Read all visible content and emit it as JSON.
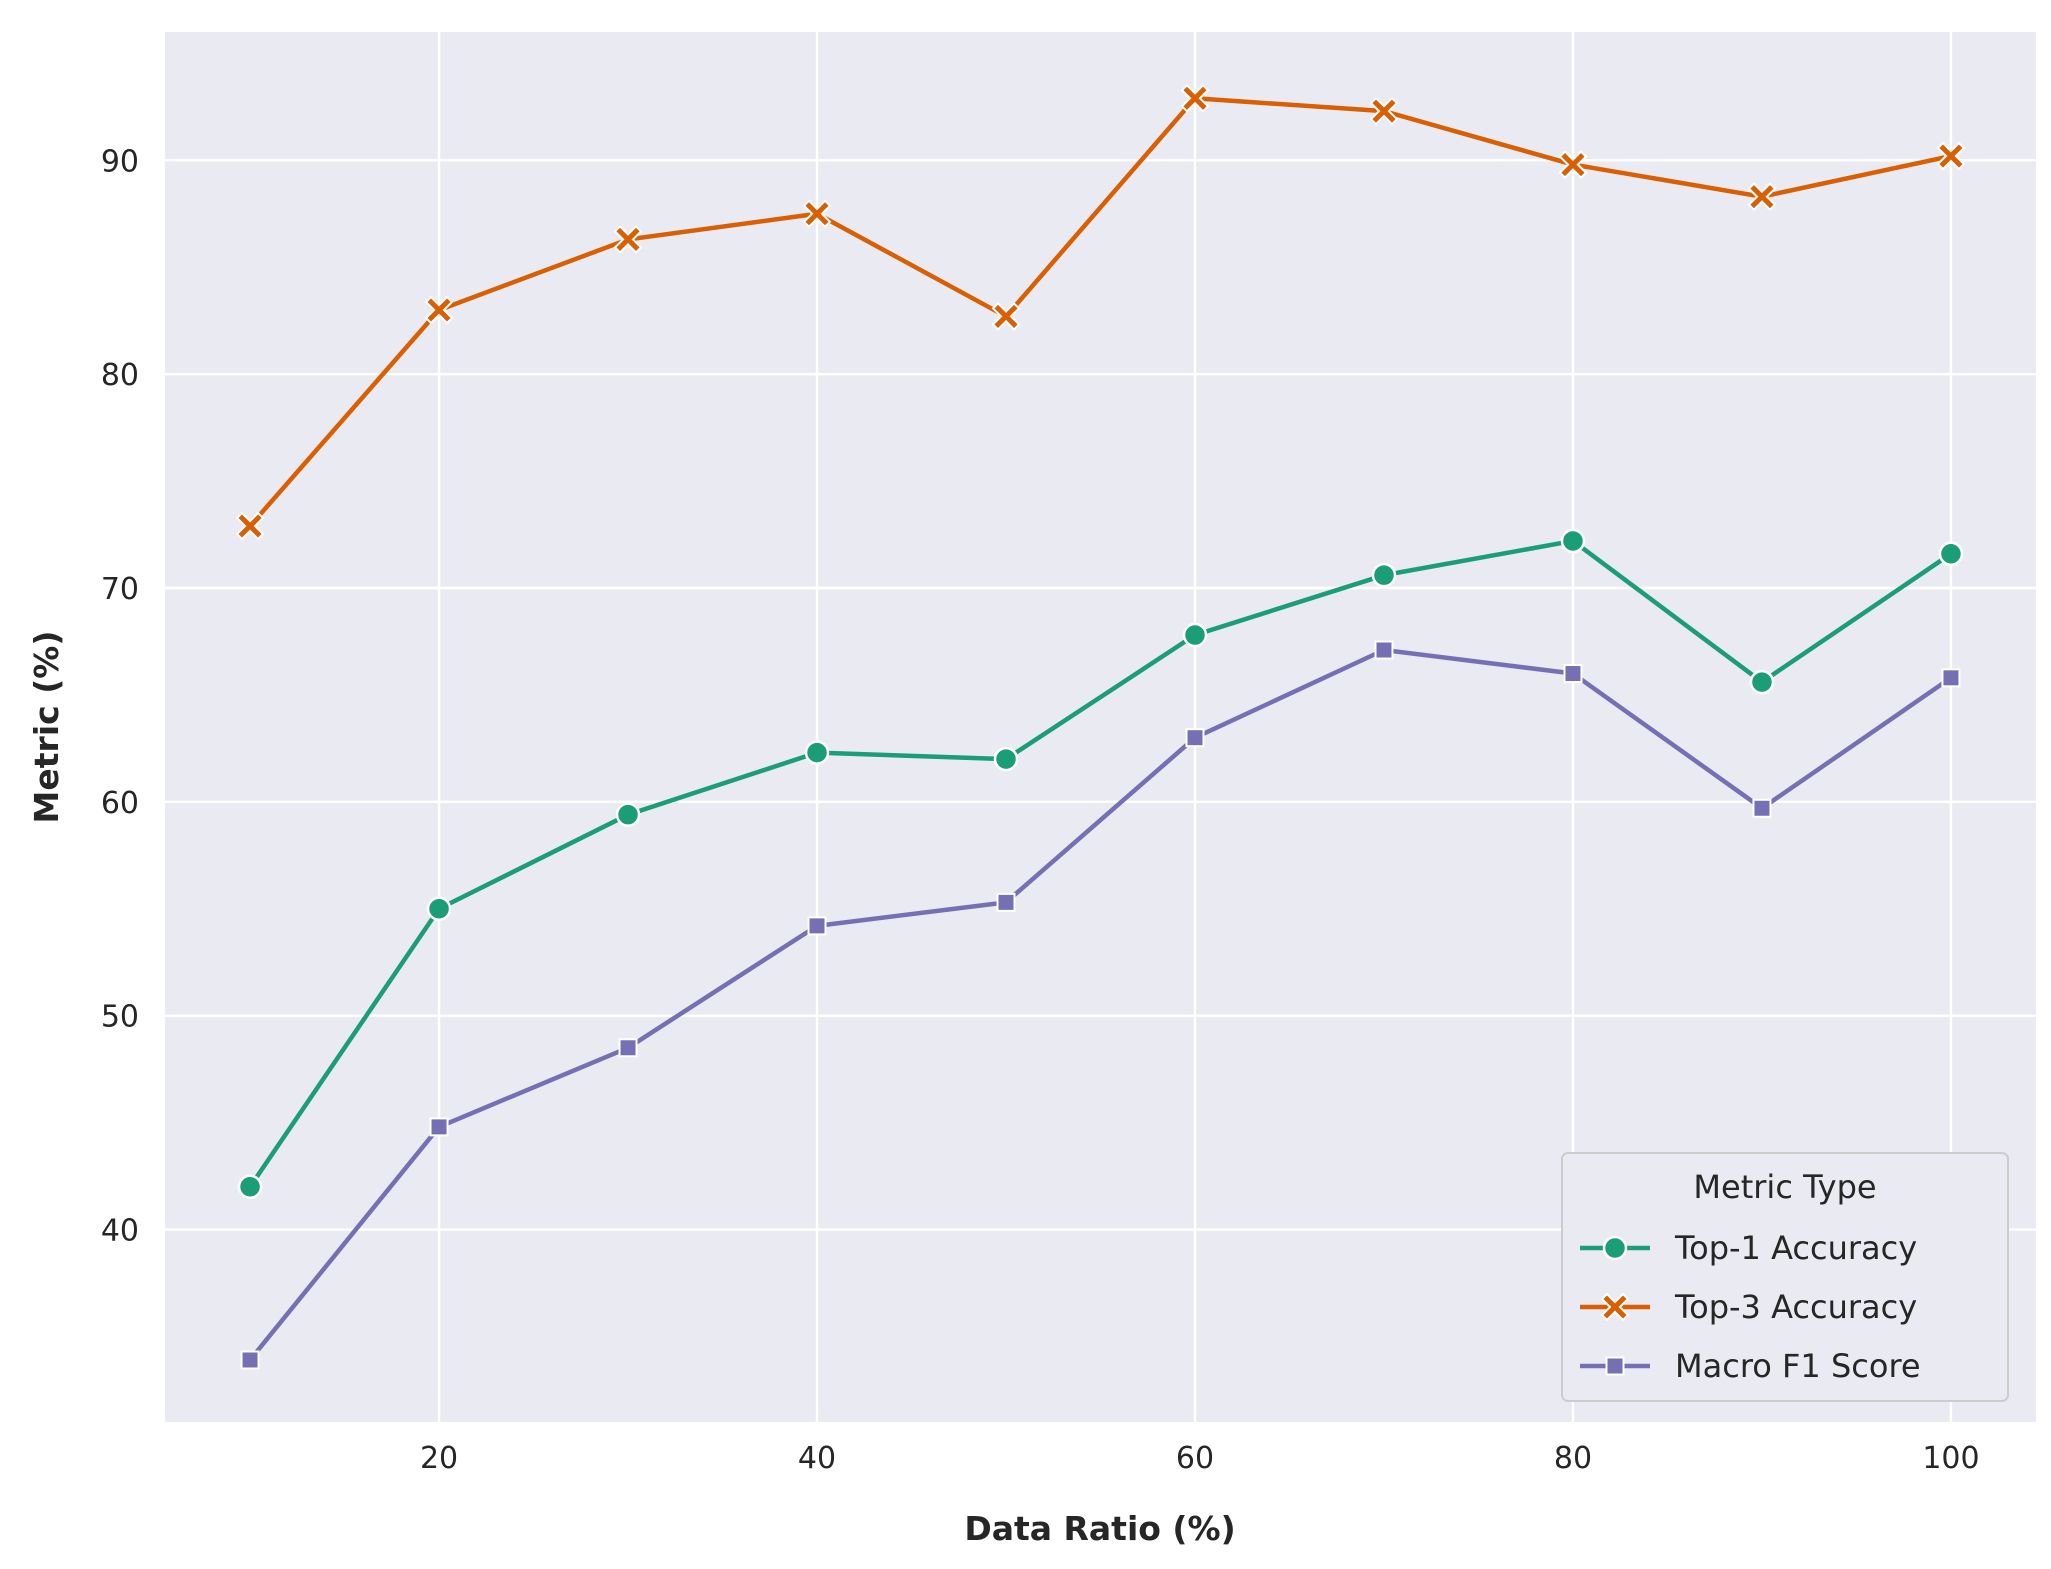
{
  "chart_data": {
    "type": "line",
    "title": "",
    "xlabel": "Data Ratio (%)",
    "ylabel": "Metric (%)",
    "x": [
      10,
      20,
      30,
      40,
      50,
      60,
      70,
      80,
      90,
      100
    ],
    "xlim": [
      5.5,
      104.5
    ],
    "ylim": [
      31,
      96
    ],
    "xticks": [
      20,
      40,
      60,
      80,
      100
    ],
    "yticks": [
      40,
      50,
      60,
      70,
      80,
      90
    ],
    "grid": true,
    "legend": {
      "title": "Metric Type",
      "placement": "lower-right"
    },
    "series": [
      {
        "name": "Top-1 Accuracy",
        "color": "#1b9e77",
        "marker": "circle",
        "values": [
          42.0,
          55.0,
          59.4,
          62.3,
          62.0,
          67.8,
          70.6,
          72.2,
          65.6,
          71.6
        ]
      },
      {
        "name": "Top-3 Accuracy",
        "color": "#d95f02",
        "marker": "x",
        "values": [
          72.9,
          83.0,
          86.3,
          87.5,
          82.7,
          92.9,
          92.3,
          89.8,
          88.3,
          90.2
        ]
      },
      {
        "name": "Macro F1 Score",
        "color": "#7570b3",
        "marker": "square",
        "values": [
          33.9,
          44.8,
          48.5,
          54.2,
          55.3,
          63.0,
          67.1,
          66.0,
          59.7,
          65.8
        ]
      }
    ]
  }
}
